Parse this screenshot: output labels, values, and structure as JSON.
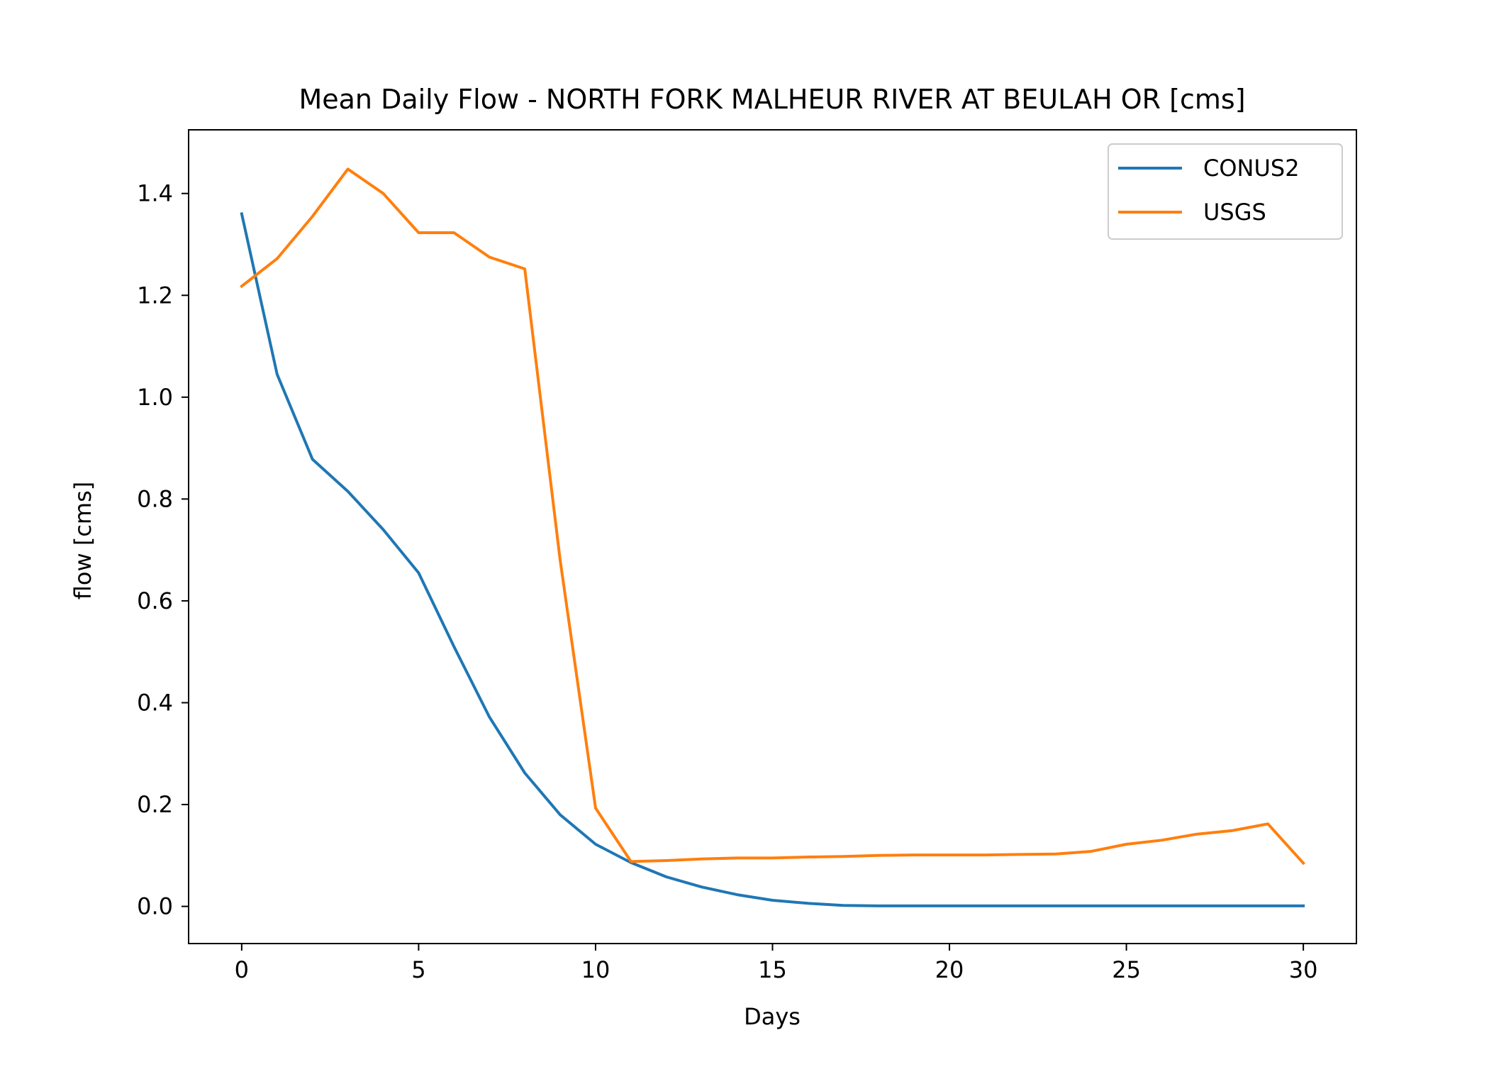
{
  "chart_data": {
    "type": "line",
    "title": "Mean Daily Flow - NORTH FORK MALHEUR RIVER AT BEULAH OR [cms]",
    "xlabel": "Days",
    "ylabel": "flow [cms]",
    "xlim": [
      -1.5,
      31.5
    ],
    "ylim": [
      -0.073,
      1.525
    ],
    "xticks": [
      0,
      5,
      10,
      15,
      20,
      25,
      30
    ],
    "yticks": [
      0.0,
      0.2,
      0.4,
      0.6,
      0.8,
      1.0,
      1.2,
      1.4
    ],
    "xtick_labels": [
      "0",
      "5",
      "10",
      "15",
      "20",
      "25",
      "30"
    ],
    "ytick_labels": [
      "0.0",
      "0.2",
      "0.4",
      "0.6",
      "0.8",
      "1.0",
      "1.2",
      "1.4"
    ],
    "grid": false,
    "legend_position": "top-right",
    "x": [
      0,
      1,
      2,
      3,
      4,
      5,
      6,
      7,
      8,
      9,
      10,
      11,
      12,
      13,
      14,
      15,
      16,
      17,
      18,
      19,
      20,
      21,
      22,
      23,
      24,
      25,
      26,
      27,
      28,
      29,
      30
    ],
    "series": [
      {
        "name": "CONUS2",
        "color": "#1f77b4",
        "values": [
          1.36,
          1.045,
          0.878,
          0.815,
          0.74,
          0.655,
          0.51,
          0.372,
          0.262,
          0.18,
          0.122,
          0.086,
          0.058,
          0.038,
          0.023,
          0.012,
          0.006,
          0.002,
          0.001,
          0.001,
          0.001,
          0.001,
          0.001,
          0.001,
          0.001,
          0.001,
          0.001,
          0.001,
          0.001,
          0.001,
          0.001
        ]
      },
      {
        "name": "USGS",
        "color": "#ff7f0e",
        "values": [
          1.218,
          1.272,
          1.355,
          1.448,
          1.4,
          1.323,
          1.323,
          1.275,
          1.252,
          0.68,
          0.193,
          0.088,
          0.09,
          0.093,
          0.095,
          0.095,
          0.097,
          0.098,
          0.1,
          0.101,
          0.101,
          0.101,
          0.102,
          0.103,
          0.108,
          0.122,
          0.13,
          0.142,
          0.149,
          0.162,
          0.085
        ]
      }
    ]
  }
}
